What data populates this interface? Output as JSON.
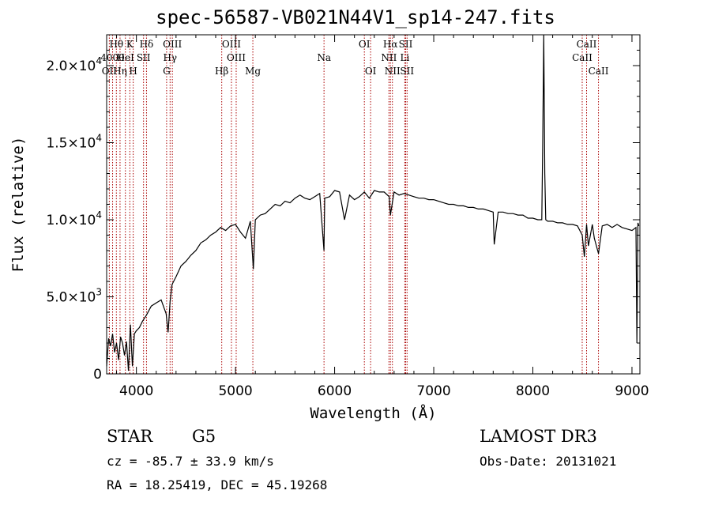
{
  "chart_data": {
    "type": "line",
    "title": "spec-56587-VB021N44V1_sp14-247.fits",
    "xlabel": "Wavelength (Å)",
    "ylabel": "Flux (relative)",
    "xlim": [
      3700,
      9080
    ],
    "ylim": [
      0,
      22000
    ],
    "x_ticks": [
      4000,
      5000,
      6000,
      7000,
      8000,
      9000
    ],
    "x_tick_labels": [
      "4000",
      "5000",
      "6000",
      "7000",
      "8000",
      "9000"
    ],
    "y_ticks": [
      0,
      5000,
      10000,
      15000,
      20000
    ],
    "y_tick_labels": [
      {
        "base": "0",
        "exp": ""
      },
      {
        "base": "5.0×10",
        "exp": "3"
      },
      {
        "base": "1.0×10",
        "exp": "4"
      },
      {
        "base": "1.5×10",
        "exp": "4"
      },
      {
        "base": "2.0×10",
        "exp": "4"
      }
    ],
    "spectrum": {
      "name": "flux",
      "x": [
        3700,
        3720,
        3740,
        3760,
        3780,
        3800,
        3820,
        3840,
        3860,
        3880,
        3900,
        3920,
        3940,
        3960,
        3980,
        4000,
        4030,
        4060,
        4100,
        4150,
        4200,
        4250,
        4300,
        4320,
        4340,
        4360,
        4400,
        4450,
        4500,
        4550,
        4600,
        4650,
        4700,
        4750,
        4800,
        4850,
        4900,
        4950,
        5000,
        5050,
        5100,
        5150,
        5180,
        5200,
        5250,
        5300,
        5350,
        5400,
        5450,
        5500,
        5550,
        5600,
        5650,
        5700,
        5750,
        5800,
        5850,
        5893,
        5900,
        5950,
        6000,
        6050,
        6100,
        6150,
        6200,
        6250,
        6300,
        6350,
        6400,
        6450,
        6500,
        6550,
        6563,
        6600,
        6650,
        6700,
        6750,
        6800,
        6850,
        6900,
        6950,
        7000,
        7050,
        7100,
        7150,
        7200,
        7250,
        7300,
        7350,
        7400,
        7450,
        7500,
        7550,
        7600,
        7610,
        7650,
        7700,
        7750,
        7800,
        7850,
        7900,
        7950,
        8000,
        8050,
        8090,
        8100,
        8110,
        8120,
        8130,
        8150,
        8200,
        8250,
        8300,
        8350,
        8400,
        8450,
        8498,
        8520,
        8542,
        8560,
        8600,
        8620,
        8662,
        8700,
        8750,
        8800,
        8850,
        8900,
        8950,
        9000,
        9040,
        9050,
        9060,
        9070
      ],
      "y": [
        500,
        2300,
        1800,
        2600,
        1400,
        2000,
        900,
        2400,
        2000,
        1200,
        2100,
        200,
        3200,
        500,
        2600,
        2800,
        3000,
        3400,
        3800,
        4400,
        4600,
        4800,
        3900,
        2700,
        4700,
        5800,
        6300,
        7000,
        7300,
        7700,
        8000,
        8500,
        8700,
        9000,
        9200,
        9500,
        9300,
        9600,
        9700,
        9200,
        8800,
        9900,
        6800,
        10000,
        10300,
        10400,
        10700,
        11000,
        10900,
        11200,
        11100,
        11400,
        11600,
        11400,
        11300,
        11500,
        11700,
        8000,
        11400,
        11500,
        11900,
        11800,
        10000,
        11600,
        11300,
        11500,
        11800,
        11400,
        11900,
        11800,
        11800,
        11500,
        10300,
        11800,
        11600,
        11700,
        11600,
        11500,
        11400,
        11400,
        11300,
        11300,
        11200,
        11100,
        11000,
        11000,
        10900,
        10900,
        10800,
        10800,
        10700,
        10700,
        10600,
        10500,
        8400,
        10500,
        10500,
        10400,
        10400,
        10300,
        10300,
        10100,
        10100,
        10000,
        10000,
        15000,
        22000,
        13000,
        10000,
        9900,
        9900,
        9800,
        9800,
        9700,
        9700,
        9600,
        9000,
        7600,
        9700,
        8300,
        9700,
        8800,
        7800,
        9600,
        9700,
        9500,
        9700,
        9500,
        9400,
        9300,
        9500,
        2000,
        9800,
        9600
      ]
    },
    "lines": [
      {
        "label": "Hθ",
        "wave": 3798,
        "row": 0
      },
      {
        "label": "K",
        "wave": 3934,
        "row": 0
      },
      {
        "label": "Hδ",
        "wave": 4102,
        "row": 0
      },
      {
        "label": "OIII",
        "wave": 4363,
        "row": 0
      },
      {
        "label": "OIII",
        "wave": 4959,
        "row": 0
      },
      {
        "label": "OI",
        "wave": 6300,
        "row": 0
      },
      {
        "label": "Hα",
        "wave": 6563,
        "row": 0
      },
      {
        "label": "SII",
        "wave": 6717,
        "row": 0
      },
      {
        "label": "CaII",
        "wave": 8542,
        "row": 0
      },
      {
        "label": "4000",
        "wave": 3760,
        "row": 1
      },
      {
        "label": "HeI",
        "wave": 3889,
        "row": 1
      },
      {
        "label": "SII",
        "wave": 4072,
        "row": 1
      },
      {
        "label": "Hγ",
        "wave": 4340,
        "row": 1
      },
      {
        "label": "OIII",
        "wave": 5007,
        "row": 1
      },
      {
        "label": "Na",
        "wave": 5893,
        "row": 1
      },
      {
        "label": "NII",
        "wave": 6548,
        "row": 1
      },
      {
        "label": "Li",
        "wave": 6708,
        "row": 1
      },
      {
        "label": "CaII",
        "wave": 8498,
        "row": 1
      },
      {
        "label": "OII",
        "wave": 3727,
        "row": 2
      },
      {
        "label": "Hη",
        "wave": 3835,
        "row": 2
      },
      {
        "label": "H",
        "wave": 3968,
        "row": 2
      },
      {
        "label": "G",
        "wave": 4305,
        "row": 2
      },
      {
        "label": "Hβ",
        "wave": 4861,
        "row": 2
      },
      {
        "label": "Mg",
        "wave": 5175,
        "row": 2
      },
      {
        "label": "OI",
        "wave": 6363,
        "row": 2
      },
      {
        "label": "NII",
        "wave": 6583,
        "row": 2
      },
      {
        "label": "SII",
        "wave": 6731,
        "row": 2
      },
      {
        "label": "CaII",
        "wave": 8662,
        "row": 2
      }
    ],
    "colors": {
      "spectrum": "#000000",
      "lines": "#aa0000",
      "axes": "#000000"
    }
  },
  "info": {
    "class_label": "STAR",
    "subclass": "G5",
    "survey": "LAMOST DR3",
    "cz": "cz = -85.7 ± 33.9 km/s",
    "obs_date": "Obs-Date: 20131021",
    "radec": "RA =  18.25419, DEC =  45.19268"
  }
}
